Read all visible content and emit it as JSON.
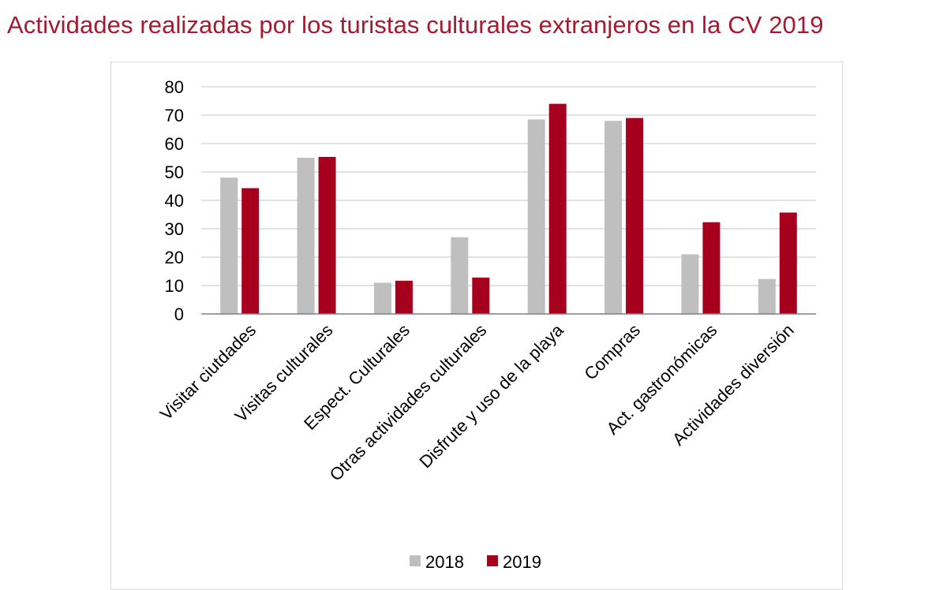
{
  "chart_data": {
    "type": "bar",
    "title": "Actividades realizadas por los turistas culturales extranjeros en la CV 2019",
    "categories": [
      "Visitar ciutdades",
      "Visitas culturales",
      "Espect. Culturales",
      "Otras actividades culturales",
      "Disfrute y uso de la playa",
      "Compras",
      "Act.  gastronómicas",
      "Actividades diversión"
    ],
    "series": [
      {
        "name": "2018",
        "color": "#bfbfbf",
        "values": [
          48,
          55,
          11,
          27,
          68.5,
          68,
          21,
          12.3
        ]
      },
      {
        "name": "2019",
        "color": "#a6001e",
        "values": [
          44.3,
          55.3,
          11.7,
          12.8,
          74,
          69,
          32.3,
          35.7
        ]
      }
    ],
    "yticks": [
      "0",
      "10",
      "20",
      "30",
      "40",
      "50",
      "60",
      "70",
      "80"
    ],
    "ylim": [
      0,
      80
    ],
    "grid": true,
    "legend_position": "bottom"
  }
}
